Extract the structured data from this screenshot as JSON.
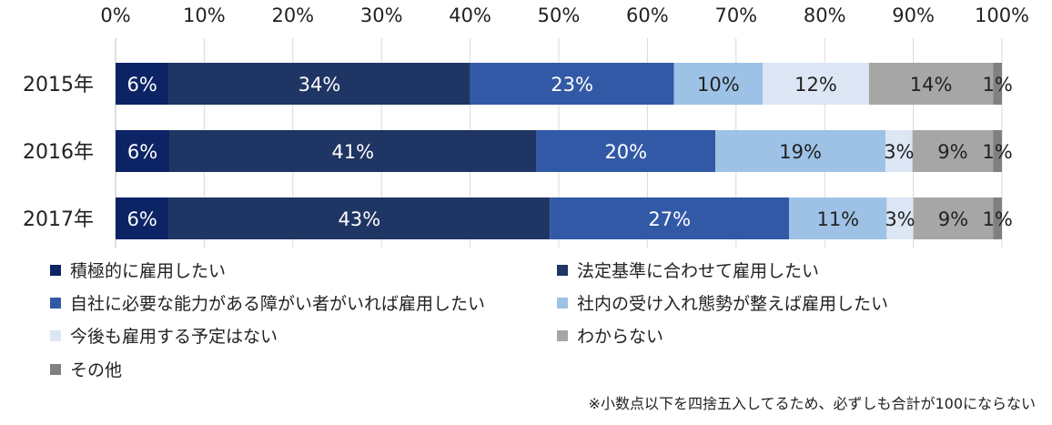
{
  "chart_data": {
    "type": "bar",
    "orientation": "horizontal",
    "stacked": true,
    "categories": [
      "2015年",
      "2016年",
      "2017年"
    ],
    "xlim": [
      0,
      100
    ],
    "x_ticks": [
      "0%",
      "10%",
      "20%",
      "30%",
      "40%",
      "50%",
      "60%",
      "70%",
      "80%",
      "90%",
      "100%"
    ],
    "series": [
      {
        "name": "積極的に雇用したい",
        "values": [
          6,
          6,
          6
        ],
        "labels": [
          "6%",
          "6%",
          "6%"
        ],
        "color": "#0c2466",
        "label_color": "#ffffff"
      },
      {
        "name": "法定基準に合わせて雇用したい",
        "values": [
          34,
          41,
          43
        ],
        "labels": [
          "34%",
          "41%",
          "43%"
        ],
        "color": "#1f3563",
        "label_color": "#ffffff"
      },
      {
        "name": "自社に必要な能力がある障がい者がいれば雇用したい",
        "values": [
          23,
          20,
          27
        ],
        "labels": [
          "23%",
          "20%",
          "27%"
        ],
        "color": "#3259a6",
        "label_color": "#ffffff"
      },
      {
        "name": "社内の受け入れ態勢が整えば雇用したい",
        "values": [
          10,
          19,
          11
        ],
        "labels": [
          "10%",
          "19%",
          "11%"
        ],
        "color": "#9dc2e6",
        "label_color": "#222222"
      },
      {
        "name": "今後も雇用する予定はない",
        "values": [
          12,
          3,
          3
        ],
        "labels": [
          "12%",
          "3%",
          "3%"
        ],
        "color": "#dce6f4",
        "label_color": "#222222"
      },
      {
        "name": "わからない",
        "values": [
          14,
          9,
          9
        ],
        "labels": [
          "14%",
          "9%",
          "9%"
        ],
        "color": "#a6a6a6",
        "label_color": "#222222"
      },
      {
        "name": "その他",
        "values": [
          1,
          1,
          1
        ],
        "labels": [
          "1%",
          "1%",
          "1%"
        ],
        "color": "#808080",
        "label_color": "#222222"
      }
    ],
    "legend_position": "bottom",
    "grid": true,
    "note": "※小数点以下を四捨五入してるため、必ずしも合計が100にならない"
  }
}
